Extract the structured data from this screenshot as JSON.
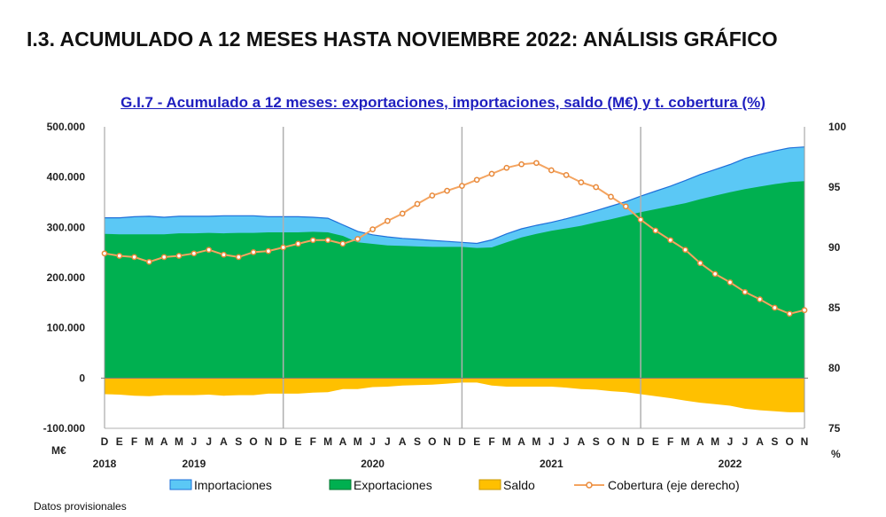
{
  "header": {
    "section_title": "I.3. ACUMULADO A 12 MESES HASTA NOVIEMBRE 2022: ANÁLISIS GRÁFICO",
    "footnote": "Datos provisionales"
  },
  "chart_data": {
    "type": "area",
    "title": "G.I.7 - Acumulado a 12 meses: exportaciones, importaciones, saldo (M€) y t. cobertura (%)",
    "y_left_unit": "M€",
    "y_right_unit": "%",
    "y_left_range": [
      -100000,
      500000
    ],
    "y_right_range": [
      75,
      100
    ],
    "y_left_ticks": [
      "500.000",
      "400.000",
      "300.000",
      "200.000",
      "100.000",
      "0",
      "-100.000"
    ],
    "y_right_ticks": [
      "100",
      "95",
      "90",
      "85",
      "80",
      "75"
    ],
    "month_labels": [
      "D",
      "E",
      "F",
      "M",
      "A",
      "M",
      "J",
      "J",
      "A",
      "S",
      "O",
      "N",
      "D",
      "E",
      "F",
      "M",
      "A",
      "M",
      "J",
      "J",
      "A",
      "S",
      "O",
      "N",
      "D",
      "E",
      "F",
      "M",
      "A",
      "M",
      "J",
      "J",
      "A",
      "S",
      "O",
      "N",
      "D",
      "E",
      "F",
      "M",
      "A",
      "M",
      "J",
      "J",
      "A",
      "S",
      "O",
      "N"
    ],
    "year_labels": [
      {
        "label": "2018",
        "index": 0
      },
      {
        "label": "2019",
        "index": 6
      },
      {
        "label": "2020",
        "index": 18
      },
      {
        "label": "2021",
        "index": 30
      },
      {
        "label": "2022",
        "index": 42
      }
    ],
    "year_separators": [
      12,
      24,
      36
    ],
    "series": [
      {
        "name": "Importaciones",
        "type": "area",
        "axis": "left",
        "color": "#5bc8f5",
        "values": [
          319000,
          319000,
          321000,
          322000,
          320000,
          322000,
          322000,
          322000,
          323000,
          323000,
          323000,
          321000,
          321000,
          321000,
          320000,
          318000,
          305000,
          292000,
          285000,
          281000,
          278000,
          276000,
          274000,
          272000,
          270000,
          268000,
          275000,
          287000,
          297000,
          304000,
          310000,
          317000,
          325000,
          333000,
          342000,
          351000,
          362000,
          372000,
          382000,
          393000,
          405000,
          415000,
          425000,
          437000,
          445000,
          452000,
          458000,
          460000
        ]
      },
      {
        "name": "Exportaciones",
        "type": "area",
        "axis": "left",
        "color": "#00b050",
        "values": [
          287000,
          286000,
          286000,
          286000,
          286000,
          288000,
          288000,
          289000,
          288000,
          289000,
          289000,
          290000,
          290000,
          290000,
          291000,
          290000,
          283000,
          270000,
          267000,
          264000,
          263000,
          262000,
          261000,
          261000,
          261000,
          259000,
          260000,
          270000,
          280000,
          287000,
          293000,
          298000,
          303000,
          310000,
          316000,
          323000,
          330000,
          336000,
          342000,
          348000,
          356000,
          363000,
          370000,
          376000,
          381000,
          386000,
          390000,
          392000
        ]
      },
      {
        "name": "Saldo",
        "type": "area",
        "axis": "left",
        "color": "#ffc000",
        "values": [
          -32000,
          -33000,
          -35000,
          -36000,
          -34000,
          -34000,
          -34000,
          -33000,
          -35000,
          -34000,
          -34000,
          -31000,
          -31000,
          -31000,
          -29000,
          -28000,
          -22000,
          -22000,
          -18000,
          -17000,
          -15000,
          -14000,
          -13000,
          -11000,
          -9000,
          -9000,
          -15000,
          -17000,
          -17000,
          -17000,
          -17000,
          -19000,
          -22000,
          -23000,
          -26000,
          -28000,
          -32000,
          -36000,
          -40000,
          -45000,
          -49000,
          -52000,
          -55000,
          -61000,
          -64000,
          -66000,
          -68000,
          -68000
        ]
      },
      {
        "name": "Cobertura (eje derecho)",
        "type": "line",
        "axis": "right",
        "color": "#f4a460",
        "values": [
          89.5,
          89.3,
          89.2,
          88.8,
          89.2,
          89.3,
          89.5,
          89.8,
          89.4,
          89.2,
          89.6,
          89.7,
          90.0,
          90.3,
          90.6,
          90.6,
          90.3,
          90.7,
          91.5,
          92.2,
          92.8,
          93.6,
          94.3,
          94.7,
          95.1,
          95.6,
          96.1,
          96.6,
          96.9,
          97.0,
          96.4,
          96.0,
          95.4,
          95.0,
          94.2,
          93.4,
          92.3,
          91.4,
          90.6,
          89.8,
          88.7,
          87.8,
          87.1,
          86.3,
          85.7,
          85.0,
          84.5,
          84.8
        ]
      }
    ],
    "legend": {
      "position": "bottom",
      "items": [
        "Importaciones",
        "Exportaciones",
        "Saldo",
        "Cobertura (eje derecho)"
      ]
    },
    "grid": false
  }
}
